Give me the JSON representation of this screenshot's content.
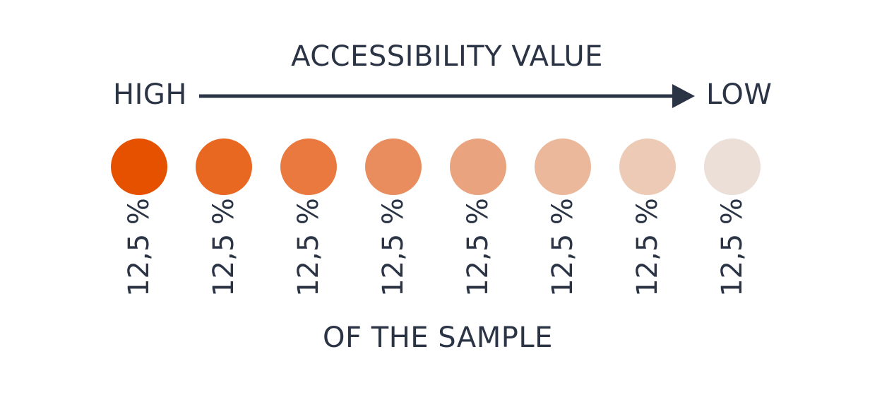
{
  "title": "ACCESSIBILITY VALUE",
  "scale": {
    "start_label": "HIGH",
    "end_label": "LOW"
  },
  "classes": [
    {
      "share_label": "12,5 %",
      "color": "#e65100"
    },
    {
      "share_label": "12,5 %",
      "color": "#e86822"
    },
    {
      "share_label": "12,5 %",
      "color": "#e9793f"
    },
    {
      "share_label": "12,5 %",
      "color": "#e98d5e"
    },
    {
      "share_label": "12,5 %",
      "color": "#e9a47f"
    },
    {
      "share_label": "12,5 %",
      "color": "#ebb89b"
    },
    {
      "share_label": "12,5 %",
      "color": "#eccab6"
    },
    {
      "share_label": "12,5 %",
      "color": "#ebdfd8"
    }
  ],
  "footer": "OF THE SAMPLE",
  "colors": {
    "text": "#2b3445",
    "arrow": "#2b3445"
  }
}
